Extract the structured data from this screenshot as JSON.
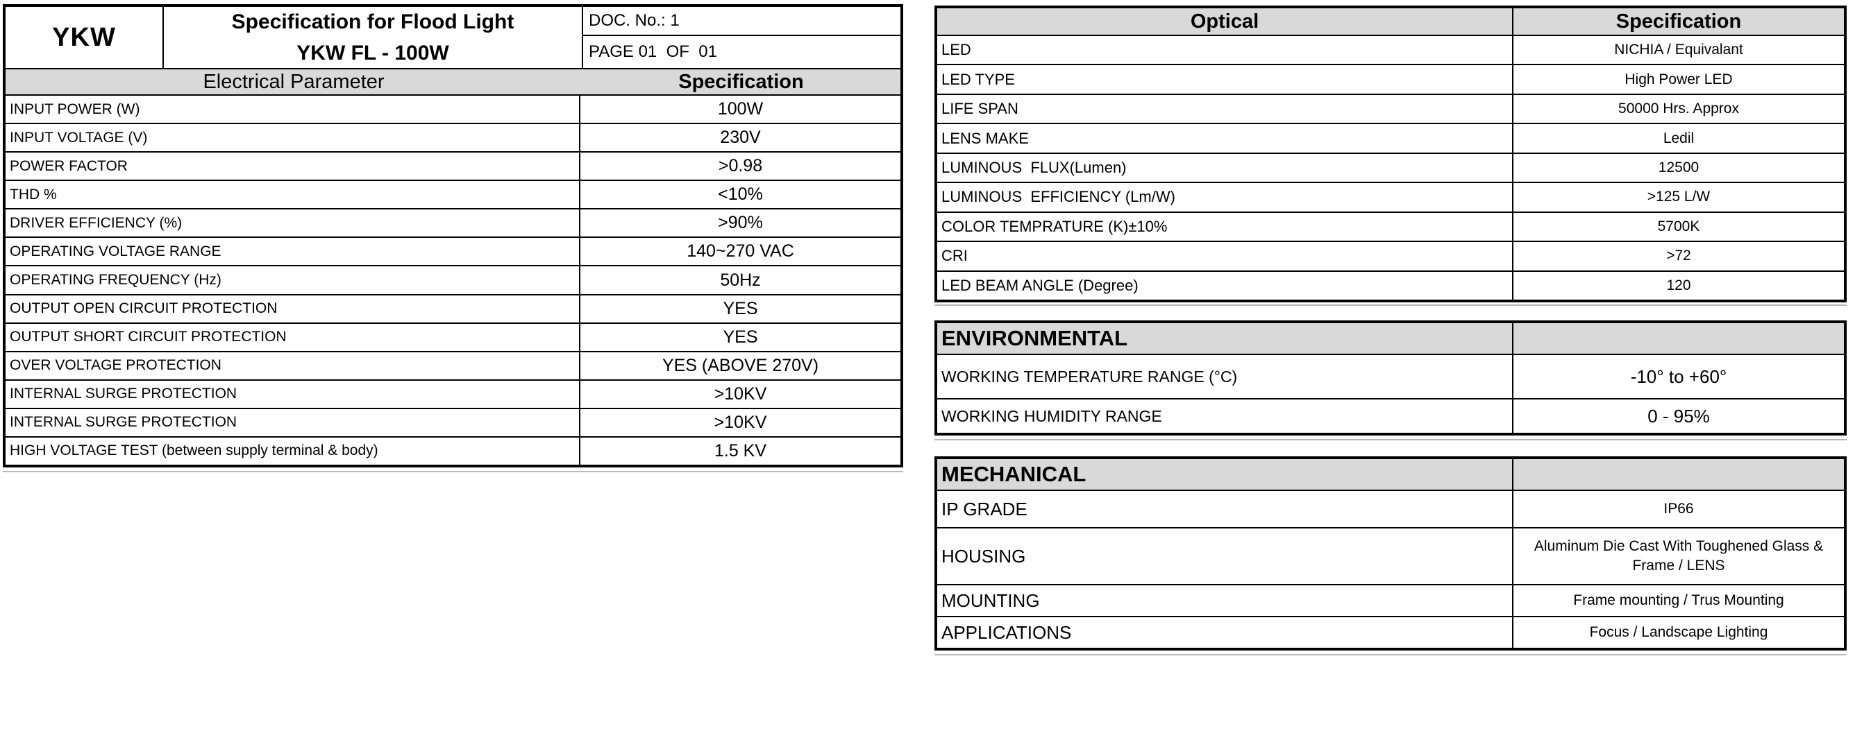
{
  "colors": {
    "header_bg": "#d9d9d9",
    "border": "#000000",
    "underline": "#b6b6b6",
    "page_bg": "#ffffff"
  },
  "header": {
    "brand": "YKW",
    "title_line1": "Specification for Flood Light",
    "title_line2": "YKW FL - 100W",
    "doc_no": "DOC. No.: 1",
    "page_info": "PAGE 01  OF  01"
  },
  "electrical": {
    "header": {
      "param": "Electrical Parameter",
      "spec": "Specification"
    },
    "rows": [
      {
        "label": "INPUT POWER (W)",
        "value": "100W"
      },
      {
        "label": "INPUT VOLTAGE (V)",
        "value": "230V"
      },
      {
        "label": "POWER FACTOR",
        "value": ">0.98"
      },
      {
        "label": "THD %",
        "value": "<10%"
      },
      {
        "label": "DRIVER EFFICIENCY (%)",
        "value": ">90%"
      },
      {
        "label": "OPERATING VOLTAGE RANGE",
        "value": "140~270 VAC"
      },
      {
        "label": "OPERATING FREQUENCY (Hz)",
        "value": "50Hz"
      },
      {
        "label": "OUTPUT OPEN CIRCUIT PROTECTION",
        "value": "YES"
      },
      {
        "label": "OUTPUT SHORT CIRCUIT PROTECTION",
        "value": "YES"
      },
      {
        "label": "OVER VOLTAGE PROTECTION",
        "value": "YES (ABOVE 270V)"
      },
      {
        "label": "INTERNAL SURGE PROTECTION",
        "value": ">10KV"
      },
      {
        "label": "INTERNAL SURGE PROTECTION",
        "value": ">10KV"
      },
      {
        "label": "HIGH VOLTAGE TEST (between supply terminal & body)",
        "value": "1.5 KV"
      }
    ]
  },
  "optical": {
    "header": {
      "param": "Optical",
      "spec": "Specification"
    },
    "rows": [
      {
        "label": "LED",
        "value": "NICHIA / Equivalant"
      },
      {
        "label": "LED TYPE",
        "value": "High Power LED"
      },
      {
        "label": "LIFE SPAN",
        "value": "50000 Hrs. Approx"
      },
      {
        "label": "LENS MAKE",
        "value": "Ledil"
      },
      {
        "label": "LUMINOUS  FLUX(Lumen)",
        "value": "12500"
      },
      {
        "label": "LUMINOUS  EFFICIENCY (Lm/W)",
        "value": ">125 L/W"
      },
      {
        "label": "COLOR TEMPRATURE (K)±10%",
        "value": "5700K"
      },
      {
        "label": "CRI",
        "value": ">72"
      },
      {
        "label": "LED BEAM ANGLE (Degree)",
        "value": "120"
      }
    ]
  },
  "environmental": {
    "title": "ENVIRONMENTAL",
    "rows": [
      {
        "label": "WORKING TEMPERATURE RANGE (°C)",
        "value": "-10° to +60°"
      },
      {
        "label": "WORKING HUMIDITY RANGE",
        "value": "0 - 95%"
      }
    ]
  },
  "mechanical": {
    "title": "MECHANICAL",
    "rows": [
      {
        "label": "IP GRADE",
        "value": "IP66"
      },
      {
        "label": "HOUSING",
        "value": "Aluminum Die Cast With Toughened Glass & Frame / LENS"
      },
      {
        "label": "MOUNTING",
        "value": "Frame mounting / Trus Mounting"
      },
      {
        "label": "APPLICATIONS",
        "value": "Focus / Landscape Lighting"
      }
    ]
  }
}
